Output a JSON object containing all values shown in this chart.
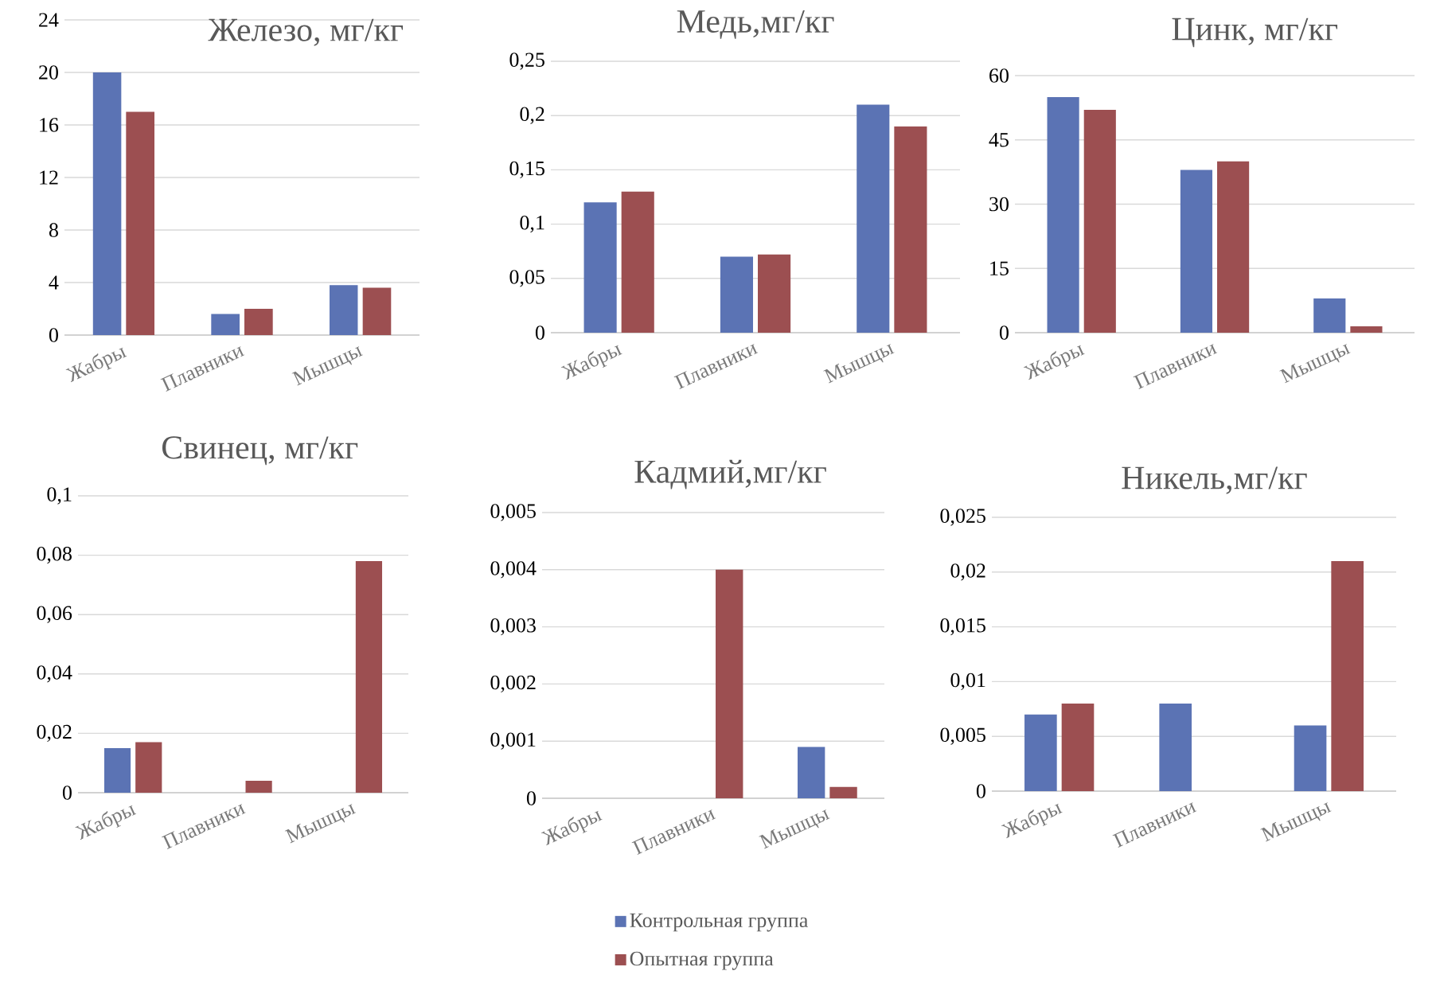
{
  "chart_data": [
    {
      "type": "bar",
      "title": "Железо, мг/кг",
      "categories": [
        "Жабры",
        "Плавники",
        "Мышцы"
      ],
      "series": [
        {
          "color": "#5b73b4",
          "values": [
            20,
            1.6,
            3.8
          ]
        },
        {
          "color": "#9c4f51",
          "values": [
            17,
            2.0,
            3.6
          ]
        }
      ],
      "ylim": [
        0,
        24
      ],
      "yticks": [
        0,
        4,
        8,
        12,
        16,
        20,
        24
      ],
      "grid": "y"
    },
    {
      "type": "bar",
      "title": "Медь,мг/кг",
      "categories": [
        "Жабры",
        "Плавники",
        "Мышцы"
      ],
      "series": [
        {
          "color": "#5b73b4",
          "values": [
            0.12,
            0.07,
            0.21
          ]
        },
        {
          "color": "#9c4f51",
          "values": [
            0.13,
            0.072,
            0.19
          ]
        }
      ],
      "ylim": [
        0,
        0.25
      ],
      "yticks": [
        0,
        {
          "value": 0.05,
          "label": "0,05"
        },
        {
          "value": 0.1,
          "label": "0,1"
        },
        {
          "value": 0.15,
          "label": "0,15"
        },
        {
          "value": 0.2,
          "label": "0,2"
        },
        {
          "value": 0.25,
          "label": "0,25"
        }
      ],
      "grid": "y"
    },
    {
      "type": "bar",
      "title": "Цинк, мг/кг",
      "categories": [
        "Жабры",
        "Плавники",
        "Мышцы"
      ],
      "series": [
        {
          "color": "#5b73b4",
          "values": [
            55,
            38,
            8
          ]
        },
        {
          "color": "#9c4f51",
          "values": [
            52,
            40,
            1.5
          ]
        }
      ],
      "ylim": [
        0,
        60
      ],
      "yticks": [
        0,
        15,
        30,
        45,
        60
      ],
      "grid": "y"
    },
    {
      "type": "bar",
      "title": "Свинец, мг/кг",
      "categories": [
        "Жабры",
        "Плавники",
        "Мышцы"
      ],
      "series": [
        {
          "color": "#5b73b4",
          "values": [
            0.015,
            null,
            null
          ]
        },
        {
          "color": "#9c4f51",
          "values": [
            0.017,
            0.004,
            0.078
          ]
        }
      ],
      "ylim": [
        0,
        0.1
      ],
      "yticks": [
        0,
        {
          "value": 0.02,
          "label": "0,02"
        },
        {
          "value": 0.04,
          "label": "0,04"
        },
        {
          "value": 0.06,
          "label": "0,06"
        },
        {
          "value": 0.08,
          "label": "0,08"
        },
        {
          "value": 0.1,
          "label": "0,1"
        }
      ],
      "grid": "y"
    },
    {
      "type": "bar",
      "title": "Кадмий,мг/кг",
      "categories": [
        "Жабры",
        "Плавники",
        "Мышцы"
      ],
      "series": [
        {
          "name": "Контрольная группа",
          "color": "#5b73b4",
          "values": [
            null,
            null,
            0.0009
          ]
        },
        {
          "name": "Опытная группа",
          "color": "#9c4f51",
          "values": [
            null,
            0.004,
            0.0002
          ]
        }
      ],
      "ylim": [
        0,
        0.005
      ],
      "yticks": [
        0,
        {
          "value": 0.001,
          "label": "0,001"
        },
        {
          "value": 0.002,
          "label": "0,002"
        },
        {
          "value": 0.003,
          "label": "0,003"
        },
        {
          "value": 0.004,
          "label": "0,004"
        },
        {
          "value": 0.005,
          "label": "0,005"
        }
      ],
      "grid": "y",
      "legend": "bottom"
    },
    {
      "type": "bar",
      "title": "Никель,мг/кг",
      "categories": [
        "Жабры",
        "Плавники",
        "Мышцы"
      ],
      "series": [
        {
          "color": "#5b73b4",
          "values": [
            0.007,
            0.008,
            0.006
          ]
        },
        {
          "color": "#9c4f51",
          "values": [
            0.008,
            null,
            0.021
          ]
        }
      ],
      "ylim": [
        0,
        0.025
      ],
      "yticks": [
        0,
        {
          "value": 0.005,
          "label": "0,005"
        },
        {
          "value": 0.01,
          "label": "0,01"
        },
        {
          "value": 0.015,
          "label": "0,015"
        },
        {
          "value": 0.02,
          "label": "0,02"
        },
        {
          "value": 0.025,
          "label": "0,025"
        }
      ],
      "grid": "y"
    }
  ]
}
